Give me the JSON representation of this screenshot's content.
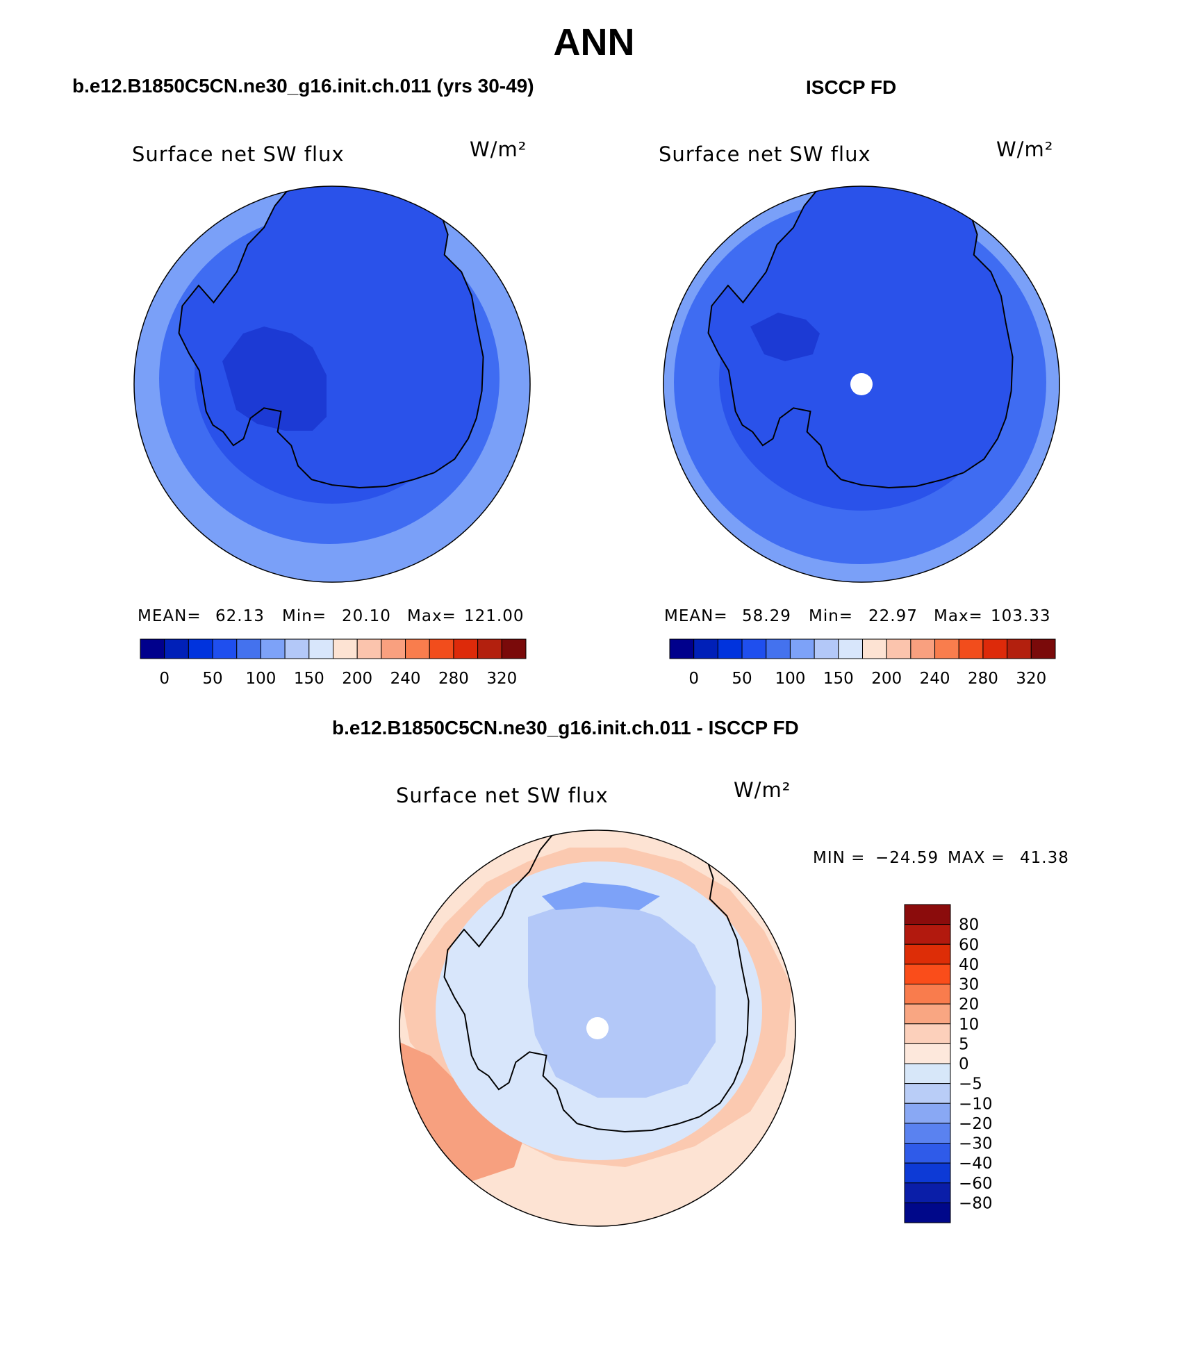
{
  "page": {
    "title": "ANN",
    "top_left_case": "b.e12.B1850C5CN.ne30_g16.init.ch.011 (yrs 30-49)",
    "top_right_case": "ISCCP FD",
    "diff_case": "b.e12.B1850C5CN.ne30_g16.init.ch.011 - ISCCP FD"
  },
  "panels": {
    "model": {
      "variable": "Surface net SW flux",
      "units": "W/m²",
      "stats": {
        "mean_label": "MEAN=",
        "mean": "62.13",
        "min_label": "Min=",
        "min": "20.10",
        "max_label": "Max=",
        "max": "121.00"
      }
    },
    "obs": {
      "variable": "Surface net SW flux",
      "units": "W/m²",
      "stats": {
        "mean_label": "MEAN=",
        "mean": "58.29",
        "min_label": "Min=",
        "min": "22.97",
        "max_label": "Max=",
        "max": "103.33"
      }
    },
    "diff": {
      "variable": "Surface net SW flux",
      "units": "W/m²",
      "stats": {
        "min_label": "MIN =",
        "min": "−24.59",
        "max_label": "MAX =",
        "max": "41.38"
      }
    }
  },
  "colorbar_main": {
    "colors": [
      "#00008c",
      "#0020b8",
      "#0033dd",
      "#1f4fee",
      "#4472ee",
      "#7da2f8",
      "#b3c8f8",
      "#d8e6fb",
      "#fde3d3",
      "#fbc4ad",
      "#f9a07f",
      "#f97d4d",
      "#f24d1c",
      "#dd2a0a",
      "#b3200e",
      "#7a0a0a"
    ],
    "tick_labels": [
      "0",
      "50",
      "100",
      "150",
      "200",
      "240",
      "280",
      "320"
    ]
  },
  "colorbar_diff": {
    "colors": [
      "#8b0c0c",
      "#b2190e",
      "#dd2d07",
      "#fa4d1a",
      "#f97c4d",
      "#f9a682",
      "#fcd0bb",
      "#fde8dc",
      "#d7e7f9",
      "#b9cdf7",
      "#89a8f4",
      "#5a82f0",
      "#2f5be9",
      "#0d3ad6",
      "#0a1ea8",
      "#00088a"
    ],
    "tick_labels": [
      "80",
      "60",
      "40",
      "30",
      "20",
      "10",
      "5",
      "0",
      "−5",
      "−10",
      "−20",
      "−30",
      "−40",
      "−60",
      "−80"
    ]
  },
  "map_palette": {
    "ant_dark": "#1c3ad4",
    "ant_mid": "#2a52ea",
    "ocean_mid": "#3f6cf2",
    "ocean_light": "#7aa0f8",
    "diff_pos_strong": "#f7a07f",
    "diff_pos": "#fbc9b0",
    "diff_pos_weak": "#fde3d3",
    "diff_neg_weak": "#d8e6fb",
    "diff_neg": "#b3c8f8",
    "diff_neg_strong": "#7da2f8"
  }
}
